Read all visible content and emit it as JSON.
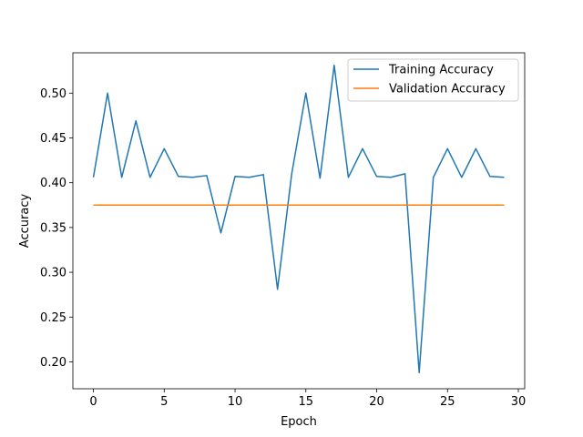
{
  "chart_data": {
    "type": "line",
    "title": "",
    "xlabel": "Epoch",
    "ylabel": "Accuracy",
    "xlim": [
      -1.45,
      30.45
    ],
    "ylim": [
      0.17,
      0.545
    ],
    "x_ticks": [
      0,
      5,
      10,
      15,
      20,
      25,
      30
    ],
    "y_ticks": [
      0.2,
      0.25,
      0.3,
      0.35,
      0.4,
      0.45,
      0.5
    ],
    "x_tick_labels": [
      "0",
      "5",
      "10",
      "15",
      "20",
      "25",
      "30"
    ],
    "y_tick_labels": [
      "0.20",
      "0.25",
      "0.30",
      "0.35",
      "0.40",
      "0.45",
      "0.50"
    ],
    "grid": false,
    "legend_position": "top-right",
    "x": [
      0,
      1,
      2,
      3,
      4,
      5,
      6,
      7,
      8,
      9,
      10,
      11,
      12,
      13,
      14,
      15,
      16,
      17,
      18,
      19,
      20,
      21,
      22,
      23,
      24,
      25,
      26,
      27,
      28,
      29
    ],
    "series": [
      {
        "name": "Training Accuracy",
        "color": "#1f77b4",
        "values": [
          0.406,
          0.5,
          0.406,
          0.469,
          0.406,
          0.438,
          0.407,
          0.406,
          0.408,
          0.344,
          0.407,
          0.406,
          0.409,
          0.281,
          0.41,
          0.5,
          0.405,
          0.531,
          0.406,
          0.438,
          0.407,
          0.406,
          0.41,
          0.188,
          0.406,
          0.438,
          0.406,
          0.438,
          0.407,
          0.406
        ]
      },
      {
        "name": "Validation Accuracy",
        "color": "#ff7f0e",
        "values": [
          0.375,
          0.375,
          0.375,
          0.375,
          0.375,
          0.375,
          0.375,
          0.375,
          0.375,
          0.375,
          0.375,
          0.375,
          0.375,
          0.375,
          0.375,
          0.375,
          0.375,
          0.375,
          0.375,
          0.375,
          0.375,
          0.375,
          0.375,
          0.375,
          0.375,
          0.375,
          0.375,
          0.375,
          0.375,
          0.375
        ]
      }
    ]
  }
}
